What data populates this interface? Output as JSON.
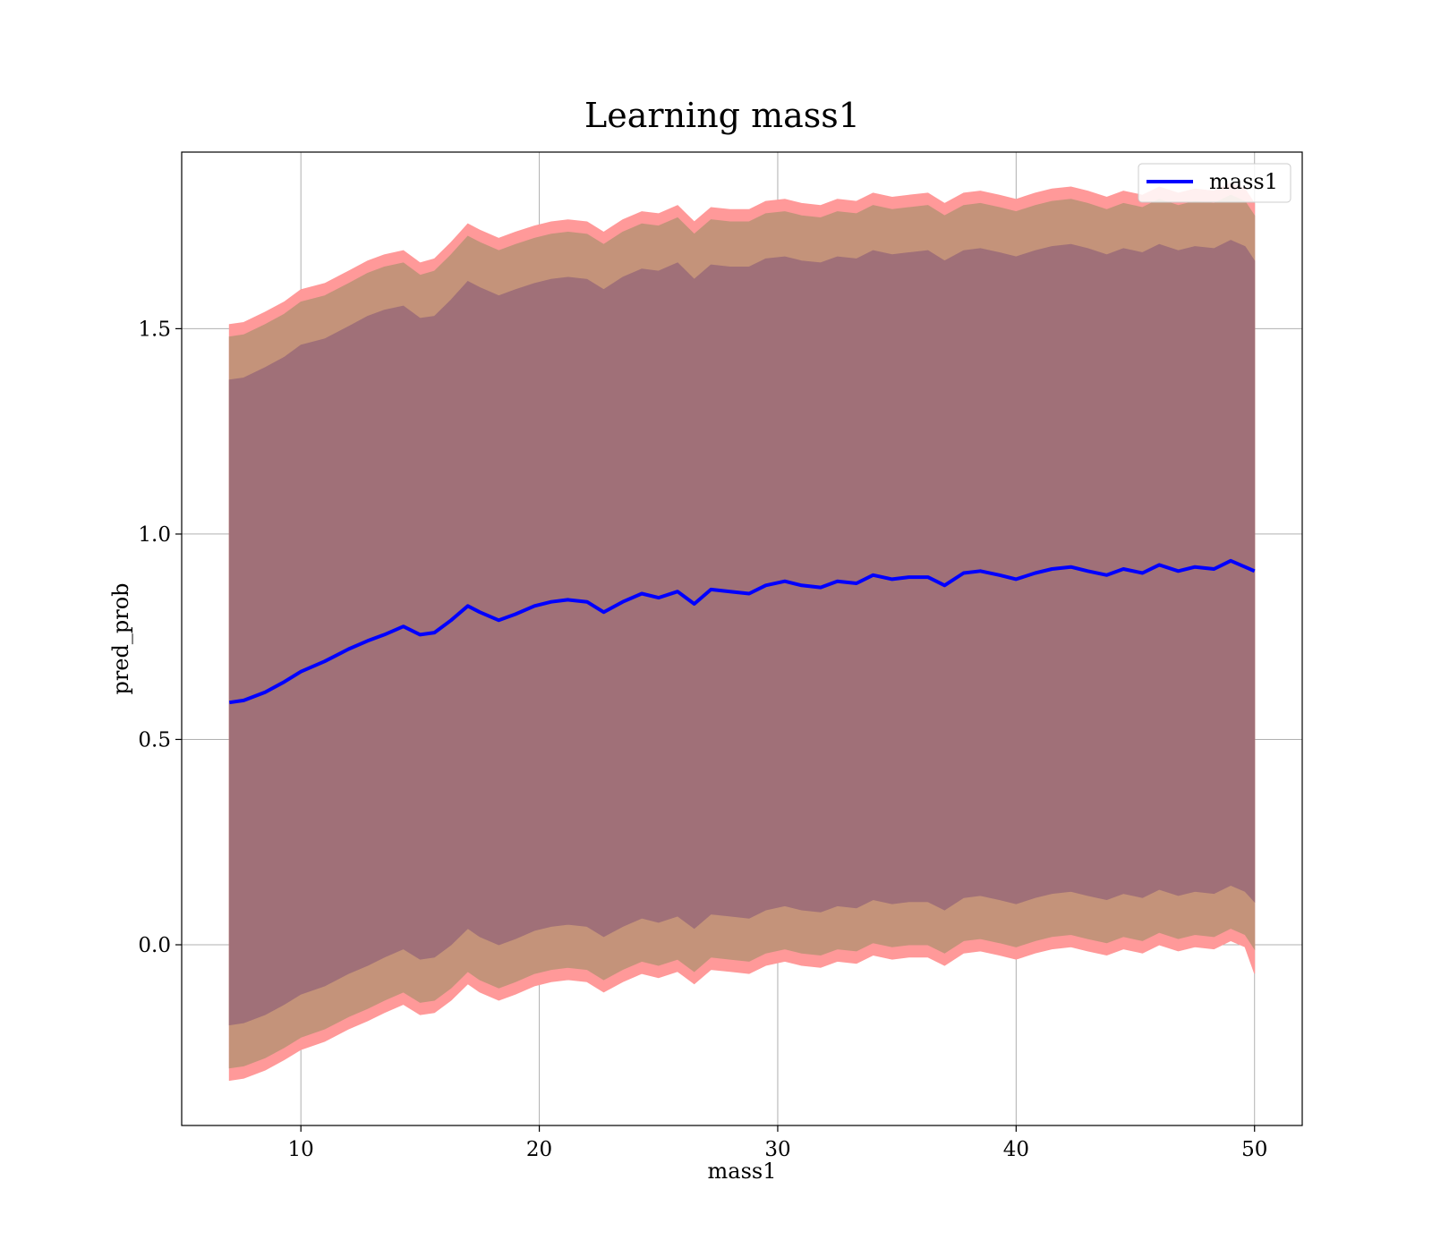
{
  "chart_data": {
    "type": "area",
    "title": "Learning mass1",
    "xlabel": "mass1",
    "ylabel": "pred_prob",
    "xlim": [
      5,
      52
    ],
    "ylim": [
      -0.44,
      1.93
    ],
    "xticks": [
      10,
      20,
      30,
      40,
      50
    ],
    "xtick_labels": [
      "10",
      "20",
      "30",
      "40",
      "50"
    ],
    "yticks": [
      0.0,
      0.5,
      1.0,
      1.5
    ],
    "ytick_labels": [
      "0.0",
      "0.5",
      "1.0",
      "1.5"
    ],
    "grid": true,
    "legend_position": "top-right",
    "x": [
      7.0,
      7.6,
      8.5,
      9.3,
      10.0,
      11.0,
      12.0,
      12.8,
      13.5,
      14.3,
      15.0,
      15.6,
      16.3,
      17.0,
      17.5,
      18.3,
      19.0,
      19.8,
      20.5,
      21.2,
      22.0,
      22.7,
      23.5,
      24.3,
      25.0,
      25.8,
      26.5,
      27.2,
      28.0,
      28.8,
      29.5,
      30.3,
      31.0,
      31.8,
      32.5,
      33.3,
      34.0,
      34.8,
      35.5,
      36.3,
      37.0,
      37.8,
      38.5,
      39.3,
      40.0,
      40.8,
      41.5,
      42.3,
      43.0,
      43.8,
      44.5,
      45.3,
      46.0,
      46.8,
      47.5,
      48.3,
      49.0,
      49.6,
      50.0
    ],
    "mean": [
      0.59,
      0.595,
      0.615,
      0.64,
      0.665,
      0.69,
      0.72,
      0.74,
      0.755,
      0.775,
      0.755,
      0.76,
      0.79,
      0.825,
      0.81,
      0.79,
      0.805,
      0.825,
      0.835,
      0.84,
      0.835,
      0.81,
      0.835,
      0.855,
      0.845,
      0.86,
      0.83,
      0.865,
      0.86,
      0.855,
      0.875,
      0.885,
      0.875,
      0.87,
      0.885,
      0.88,
      0.9,
      0.89,
      0.895,
      0.895,
      0.875,
      0.905,
      0.91,
      0.9,
      0.89,
      0.905,
      0.915,
      0.92,
      0.91,
      0.9,
      0.915,
      0.905,
      0.925,
      0.91,
      0.92,
      0.915,
      0.935,
      0.92,
      0.91
    ],
    "band_1sd": {
      "upper": [
        1.375,
        1.38,
        1.405,
        1.43,
        1.46,
        1.475,
        1.505,
        1.53,
        1.545,
        1.555,
        1.525,
        1.53,
        1.57,
        1.615,
        1.6,
        1.58,
        1.595,
        1.61,
        1.62,
        1.625,
        1.62,
        1.595,
        1.625,
        1.645,
        1.64,
        1.66,
        1.62,
        1.655,
        1.65,
        1.65,
        1.67,
        1.675,
        1.665,
        1.66,
        1.675,
        1.67,
        1.69,
        1.68,
        1.685,
        1.69,
        1.665,
        1.69,
        1.695,
        1.685,
        1.675,
        1.69,
        1.7,
        1.705,
        1.695,
        1.68,
        1.695,
        1.685,
        1.705,
        1.69,
        1.7,
        1.695,
        1.715,
        1.7,
        1.665
      ],
      "lower": [
        -0.195,
        -0.19,
        -0.17,
        -0.145,
        -0.12,
        -0.1,
        -0.07,
        -0.05,
        -0.03,
        -0.01,
        -0.035,
        -0.03,
        0.0,
        0.04,
        0.02,
        0.0,
        0.015,
        0.035,
        0.045,
        0.05,
        0.045,
        0.02,
        0.045,
        0.065,
        0.055,
        0.07,
        0.04,
        0.075,
        0.07,
        0.065,
        0.085,
        0.095,
        0.085,
        0.08,
        0.095,
        0.09,
        0.11,
        0.1,
        0.105,
        0.105,
        0.085,
        0.115,
        0.12,
        0.11,
        0.1,
        0.115,
        0.125,
        0.13,
        0.12,
        0.11,
        0.125,
        0.115,
        0.135,
        0.12,
        0.13,
        0.125,
        0.145,
        0.13,
        0.105
      ]
    },
    "band_2sd": {
      "upper": [
        1.48,
        1.485,
        1.51,
        1.535,
        1.565,
        1.58,
        1.61,
        1.635,
        1.65,
        1.66,
        1.63,
        1.64,
        1.68,
        1.725,
        1.71,
        1.69,
        1.705,
        1.72,
        1.73,
        1.735,
        1.73,
        1.705,
        1.735,
        1.755,
        1.75,
        1.77,
        1.73,
        1.765,
        1.76,
        1.76,
        1.78,
        1.785,
        1.775,
        1.77,
        1.785,
        1.78,
        1.8,
        1.79,
        1.795,
        1.8,
        1.775,
        1.8,
        1.805,
        1.795,
        1.785,
        1.8,
        1.81,
        1.815,
        1.805,
        1.79,
        1.805,
        1.795,
        1.815,
        1.8,
        1.81,
        1.805,
        1.825,
        1.81,
        1.775
      ],
      "lower": [
        -0.3,
        -0.295,
        -0.275,
        -0.25,
        -0.225,
        -0.205,
        -0.175,
        -0.155,
        -0.135,
        -0.115,
        -0.14,
        -0.135,
        -0.105,
        -0.065,
        -0.085,
        -0.105,
        -0.09,
        -0.07,
        -0.06,
        -0.055,
        -0.06,
        -0.085,
        -0.06,
        -0.04,
        -0.05,
        -0.035,
        -0.065,
        -0.03,
        -0.035,
        -0.04,
        -0.02,
        -0.01,
        -0.02,
        -0.025,
        -0.01,
        -0.015,
        0.005,
        -0.005,
        0.0,
        0.0,
        -0.02,
        0.01,
        0.015,
        0.005,
        -0.005,
        0.01,
        0.02,
        0.025,
        0.015,
        0.005,
        0.02,
        0.01,
        0.03,
        0.015,
        0.025,
        0.02,
        0.04,
        0.025,
        -0.01
      ]
    },
    "band_3sd": {
      "upper": [
        1.51,
        1.515,
        1.54,
        1.565,
        1.595,
        1.61,
        1.64,
        1.665,
        1.68,
        1.69,
        1.66,
        1.67,
        1.71,
        1.755,
        1.74,
        1.72,
        1.735,
        1.75,
        1.76,
        1.765,
        1.76,
        1.735,
        1.765,
        1.785,
        1.78,
        1.8,
        1.76,
        1.795,
        1.79,
        1.79,
        1.81,
        1.815,
        1.805,
        1.8,
        1.815,
        1.81,
        1.83,
        1.82,
        1.825,
        1.83,
        1.805,
        1.83,
        1.835,
        1.825,
        1.815,
        1.83,
        1.84,
        1.845,
        1.835,
        1.82,
        1.835,
        1.825,
        1.845,
        1.83,
        1.84,
        1.835,
        1.855,
        1.84,
        1.805
      ],
      "lower": [
        -0.33,
        -0.325,
        -0.305,
        -0.28,
        -0.255,
        -0.235,
        -0.205,
        -0.185,
        -0.165,
        -0.145,
        -0.17,
        -0.165,
        -0.135,
        -0.095,
        -0.115,
        -0.135,
        -0.12,
        -0.1,
        -0.09,
        -0.085,
        -0.09,
        -0.115,
        -0.09,
        -0.07,
        -0.08,
        -0.065,
        -0.095,
        -0.06,
        -0.065,
        -0.07,
        -0.05,
        -0.04,
        -0.05,
        -0.055,
        -0.04,
        -0.045,
        -0.025,
        -0.035,
        -0.03,
        -0.03,
        -0.05,
        -0.02,
        -0.015,
        -0.025,
        -0.035,
        -0.02,
        -0.01,
        -0.005,
        -0.015,
        -0.025,
        -0.01,
        -0.02,
        0.0,
        -0.015,
        -0.005,
        -0.01,
        0.01,
        -0.005,
        -0.07
      ]
    },
    "series": [
      {
        "name": "mass1",
        "color": "#0000ff"
      }
    ],
    "band_colors": {
      "band_3sd": "#ff9999",
      "band_2sd": "#c4937a",
      "band_1sd": "#a07078"
    }
  }
}
